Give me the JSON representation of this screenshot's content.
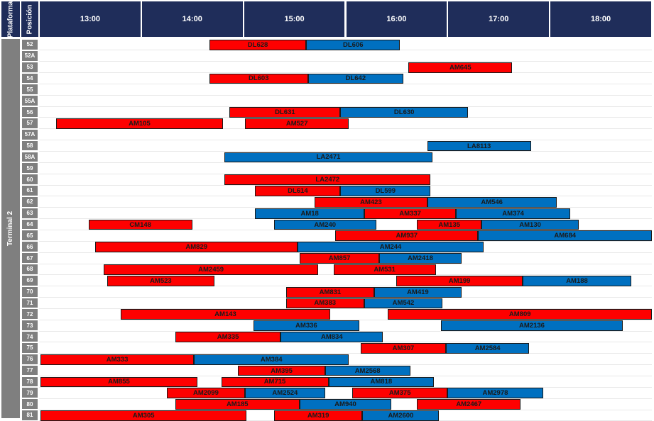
{
  "header": {
    "plataforma_label": "Plataforma",
    "posicion_label": "Posición",
    "times": [
      "13:00",
      "14:00",
      "15:00",
      "16:00",
      "17:00",
      "18:00"
    ]
  },
  "terminal_label": "Terminal 2",
  "colors": {
    "arrival": "#fe0000",
    "departure": "#0070c0",
    "header": "#1f2d5a",
    "position": "#7f7f7f"
  },
  "timeline_start": "12:23",
  "timeline_end": "18:39",
  "positions": [
    {
      "pos": "52",
      "bars": [
        {
          "label": "DL628",
          "start": "14:10",
          "end": "15:07",
          "color": "red"
        },
        {
          "label": "DL606",
          "start": "15:07",
          "end": "16:02",
          "color": "blue"
        }
      ]
    },
    {
      "pos": "52A",
      "bars": []
    },
    {
      "pos": "53",
      "bars": [
        {
          "label": "AM645",
          "start": "16:07",
          "end": "17:08",
          "color": "red"
        }
      ]
    },
    {
      "pos": "54",
      "bars": [
        {
          "label": "DL603",
          "start": "14:10",
          "end": "15:08",
          "color": "red"
        },
        {
          "label": "DL642",
          "start": "15:08",
          "end": "16:04",
          "color": "blue"
        }
      ]
    },
    {
      "pos": "55",
      "bars": []
    },
    {
      "pos": "55A",
      "bars": []
    },
    {
      "pos": "56",
      "bars": [
        {
          "label": "DL631",
          "start": "14:22",
          "end": "15:27",
          "color": "red"
        },
        {
          "label": "DL630",
          "start": "15:27",
          "end": "16:42",
          "color": "blue"
        }
      ]
    },
    {
      "pos": "57",
      "bars": [
        {
          "label": "AM105",
          "start": "12:40",
          "end": "14:18",
          "color": "red"
        },
        {
          "label": "AM527",
          "start": "14:31",
          "end": "15:32",
          "color": "red"
        }
      ]
    },
    {
      "pos": "57A",
      "bars": []
    },
    {
      "pos": "58",
      "bars": [
        {
          "label": "LA8113",
          "start": "16:18",
          "end": "17:19",
          "color": "blue"
        }
      ]
    },
    {
      "pos": "58A",
      "bars": [
        {
          "label": "LA2471",
          "start": "14:19",
          "end": "16:21",
          "color": "blue"
        }
      ]
    },
    {
      "pos": "59",
      "bars": []
    },
    {
      "pos": "60",
      "bars": [
        {
          "label": "LA2472",
          "start": "14:19",
          "end": "16:20",
          "color": "red"
        }
      ]
    },
    {
      "pos": "61",
      "bars": [
        {
          "label": "DL614",
          "start": "14:37",
          "end": "15:27",
          "color": "red"
        },
        {
          "label": "DL599",
          "start": "15:27",
          "end": "16:20",
          "color": "blue"
        }
      ]
    },
    {
      "pos": "62",
      "bars": [
        {
          "label": "AM423",
          "start": "15:12",
          "end": "16:18",
          "color": "red"
        },
        {
          "label": "AM546",
          "start": "16:18",
          "end": "17:34",
          "color": "blue"
        }
      ]
    },
    {
      "pos": "63",
      "bars": [
        {
          "label": "AM18",
          "start": "14:37",
          "end": "15:41",
          "color": "blue"
        },
        {
          "label": "AM337",
          "start": "15:41",
          "end": "16:35",
          "color": "red"
        },
        {
          "label": "AM374",
          "start": "16:35",
          "end": "17:42",
          "color": "blue"
        }
      ]
    },
    {
      "pos": "64",
      "bars": [
        {
          "label": "CM148",
          "start": "12:59",
          "end": "14:00",
          "color": "red"
        },
        {
          "label": "AM240",
          "start": "14:48",
          "end": "15:48",
          "color": "blue"
        },
        {
          "label": "AM135",
          "start": "16:12",
          "end": "16:50",
          "color": "red"
        },
        {
          "label": "AM130",
          "start": "16:50",
          "end": "17:47",
          "color": "blue"
        }
      ]
    },
    {
      "pos": "65",
      "bars": [
        {
          "label": "AM937",
          "start": "15:24",
          "end": "16:48",
          "color": "red"
        },
        {
          "label": "AM684",
          "start": "16:48",
          "end": "18:39",
          "color": "blue"
        }
      ]
    },
    {
      "pos": "66",
      "bars": [
        {
          "label": "AM829",
          "start": "13:03",
          "end": "15:02",
          "color": "red"
        },
        {
          "label": "AM244",
          "start": "15:02",
          "end": "16:51",
          "color": "blue"
        }
      ]
    },
    {
      "pos": "67",
      "bars": [
        {
          "label": "AM857",
          "start": "15:03",
          "end": "15:50",
          "color": "red"
        },
        {
          "label": "AM2418",
          "start": "15:50",
          "end": "16:38",
          "color": "blue"
        }
      ]
    },
    {
      "pos": "68",
      "bars": [
        {
          "label": "AM2459",
          "start": "13:08",
          "end": "15:14",
          "color": "red"
        },
        {
          "label": "AM531",
          "start": "15:23",
          "end": "16:23",
          "color": "red"
        }
      ]
    },
    {
      "pos": "69",
      "bars": [
        {
          "label": "AM523",
          "start": "13:10",
          "end": "14:13",
          "color": "red"
        },
        {
          "label": "AM199",
          "start": "16:00",
          "end": "17:14",
          "color": "red"
        },
        {
          "label": "AM188",
          "start": "17:14",
          "end": "18:18",
          "color": "blue"
        }
      ]
    },
    {
      "pos": "70",
      "bars": [
        {
          "label": "AM831",
          "start": "14:55",
          "end": "15:47",
          "color": "red"
        },
        {
          "label": "AM419",
          "start": "15:47",
          "end": "16:38",
          "color": "blue"
        }
      ]
    },
    {
      "pos": "71",
      "bars": [
        {
          "label": "AM383",
          "start": "14:55",
          "end": "15:41",
          "color": "red"
        },
        {
          "label": "AM542",
          "start": "15:41",
          "end": "16:27",
          "color": "blue"
        }
      ]
    },
    {
      "pos": "72",
      "bars": [
        {
          "label": "AM143",
          "start": "13:18",
          "end": "15:21",
          "color": "red"
        },
        {
          "label": "AM809",
          "start": "15:55",
          "end": "18:39",
          "color": "red"
        }
      ]
    },
    {
      "pos": "73",
      "bars": [
        {
          "label": "AM336",
          "start": "14:36",
          "end": "15:38",
          "color": "blue"
        },
        {
          "label": "AM2136",
          "start": "16:26",
          "end": "18:13",
          "color": "blue"
        }
      ]
    },
    {
      "pos": "74",
      "bars": [
        {
          "label": "AM335",
          "start": "13:50",
          "end": "14:52",
          "color": "red"
        },
        {
          "label": "AM834",
          "start": "14:52",
          "end": "15:52",
          "color": "blue"
        }
      ]
    },
    {
      "pos": "75",
      "bars": [
        {
          "label": "AM307",
          "start": "15:39",
          "end": "16:29",
          "color": "red"
        },
        {
          "label": "AM2584",
          "start": "16:29",
          "end": "17:18",
          "color": "blue"
        }
      ]
    },
    {
      "pos": "76",
      "bars": [
        {
          "label": "AM333",
          "start": "12:30",
          "end": "14:01",
          "color": "red"
        },
        {
          "label": "AM384",
          "start": "14:01",
          "end": "15:32",
          "color": "blue"
        }
      ]
    },
    {
      "pos": "77",
      "bars": [
        {
          "label": "AM395",
          "start": "14:27",
          "end": "15:18",
          "color": "red"
        },
        {
          "label": "AM2568",
          "start": "15:18",
          "end": "16:08",
          "color": "blue"
        }
      ]
    },
    {
      "pos": "78",
      "bars": [
        {
          "label": "AM855",
          "start": "12:27",
          "end": "14:03",
          "color": "red"
        },
        {
          "label": "AM715",
          "start": "14:17",
          "end": "15:20",
          "color": "red"
        },
        {
          "label": "AM818",
          "start": "15:20",
          "end": "16:22",
          "color": "blue"
        }
      ]
    },
    {
      "pos": "79",
      "bars": [
        {
          "label": "AM2099",
          "start": "13:45",
          "end": "14:31",
          "color": "red"
        },
        {
          "label": "AM2524",
          "start": "14:31",
          "end": "15:18",
          "color": "blue"
        },
        {
          "label": "AM375",
          "start": "15:34",
          "end": "16:30",
          "color": "red"
        },
        {
          "label": "AM2978",
          "start": "16:30",
          "end": "17:26",
          "color": "blue"
        }
      ]
    },
    {
      "pos": "80",
      "bars": [
        {
          "label": "AM185",
          "start": "13:50",
          "end": "15:03",
          "color": "red"
        },
        {
          "label": "AM940",
          "start": "15:03",
          "end": "15:57",
          "color": "blue"
        },
        {
          "label": "AM2467",
          "start": "16:12",
          "end": "17:13",
          "color": "red"
        }
      ]
    },
    {
      "pos": "81",
      "bars": [
        {
          "label": "AM305",
          "start": "12:28",
          "end": "14:32",
          "color": "red"
        },
        {
          "label": "AM319",
          "start": "14:48",
          "end": "15:40",
          "color": "red"
        },
        {
          "label": "AM2600",
          "start": "15:40",
          "end": "16:25",
          "color": "blue"
        }
      ]
    }
  ]
}
